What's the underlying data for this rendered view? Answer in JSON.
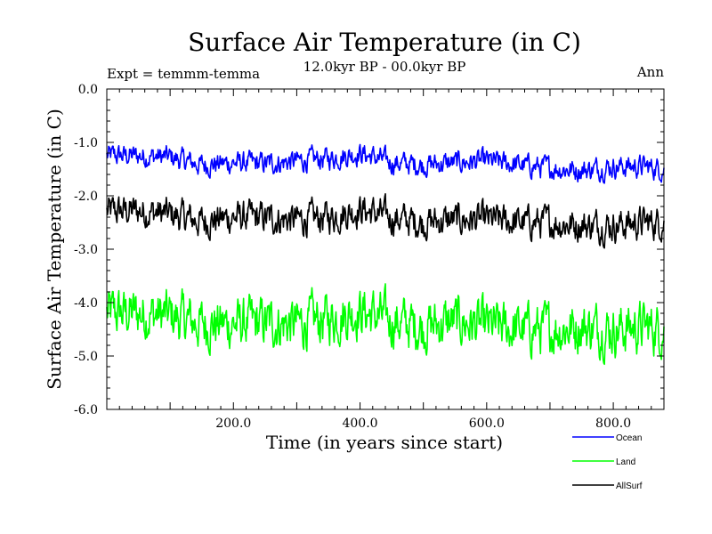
{
  "chart_data": {
    "type": "line",
    "title": "Surface Air Temperature (in C)",
    "subtitle": "12.0kyr BP - 00.0kyr BP",
    "experiment": "Expt = temmm-temma",
    "season": "Ann",
    "xlabel": "Time (in years since start)",
    "ylabel": "Surface Air Temperature (in C)",
    "xlim": [
      0,
      880
    ],
    "ylim": [
      -6.0,
      0.0
    ],
    "xticks": [
      200,
      400,
      600,
      800
    ],
    "xtick_labels": [
      "200.0",
      "400.0",
      "600.0",
      "800.0"
    ],
    "yticks": [
      0,
      -1,
      -2,
      -3,
      -4,
      -5,
      -6
    ],
    "ytick_labels": [
      "0.0",
      "-1.0",
      "-2.0",
      "-3.0",
      "-4.0",
      "-5.0",
      "-6.0"
    ],
    "series": [
      {
        "name": "Ocean",
        "color": "#0000ff",
        "x": [
          0,
          50,
          100,
          150,
          200,
          250,
          300,
          350,
          400,
          450,
          500,
          550,
          600,
          650,
          700,
          750,
          800,
          850,
          880
        ],
        "values": [
          -1.25,
          -1.25,
          -1.28,
          -1.42,
          -1.38,
          -1.4,
          -1.35,
          -1.3,
          -1.2,
          -1.38,
          -1.42,
          -1.38,
          -1.35,
          -1.42,
          -1.48,
          -1.52,
          -1.45,
          -1.45,
          -1.5
        ]
      },
      {
        "name": "Land",
        "color": "#00ff00",
        "x": [
          0,
          50,
          100,
          150,
          200,
          250,
          300,
          350,
          400,
          450,
          500,
          550,
          600,
          650,
          700,
          750,
          800,
          850,
          880
        ],
        "values": [
          -4.2,
          -4.2,
          -4.25,
          -4.4,
          -4.4,
          -4.38,
          -4.4,
          -4.3,
          -4.15,
          -4.35,
          -4.45,
          -4.35,
          -4.45,
          -4.5,
          -4.5,
          -4.45,
          -4.5,
          -4.45,
          -4.5
        ]
      },
      {
        "name": "AllSurf",
        "color": "#000000",
        "x": [
          0,
          50,
          100,
          150,
          200,
          250,
          300,
          350,
          400,
          450,
          500,
          550,
          600,
          650,
          700,
          750,
          800,
          850,
          880
        ],
        "values": [
          -2.3,
          -2.28,
          -2.35,
          -2.48,
          -2.4,
          -2.42,
          -2.45,
          -2.4,
          -2.25,
          -2.42,
          -2.5,
          -2.45,
          -2.45,
          -2.5,
          -2.5,
          -2.55,
          -2.55,
          -2.5,
          -2.5
        ]
      }
    ],
    "legend_position": "bottom-right"
  }
}
